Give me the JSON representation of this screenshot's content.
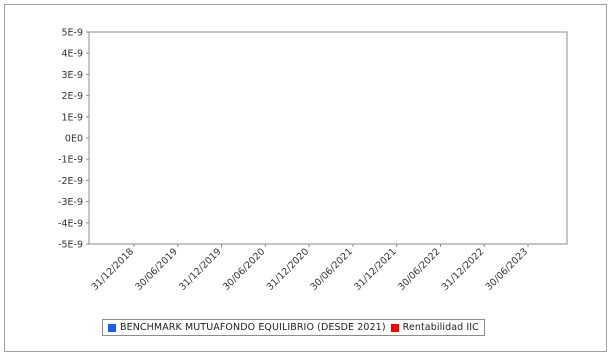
{
  "chart_data": {
    "type": "line",
    "title": "",
    "xlabel": "",
    "ylabel": "",
    "x_ticks": [
      "31/12/2018",
      "30/06/2019",
      "31/12/2019",
      "30/06/2020",
      "31/12/2020",
      "30/06/2021",
      "31/12/2021",
      "30/06/2022",
      "31/12/2022",
      "30/06/2023"
    ],
    "y_ticks": [
      "5E-9",
      "4E-9",
      "3E-9",
      "2E-9",
      "1E-9",
      "0E0",
      "-1E-9",
      "-2E-9",
      "-3E-9",
      "-4E-9",
      "-5E-9"
    ],
    "ylim": [
      -5e-09,
      5e-09
    ],
    "grid": false,
    "legend_position": "bottom",
    "series": [
      {
        "name": "BENCHMARK MUTUAFONDO EQUILIBRIO (DESDE 2021)",
        "color": "#1a5cff",
        "values": []
      },
      {
        "name": "Rentabilidad IIC",
        "color": "#ff0000",
        "values": []
      }
    ]
  }
}
